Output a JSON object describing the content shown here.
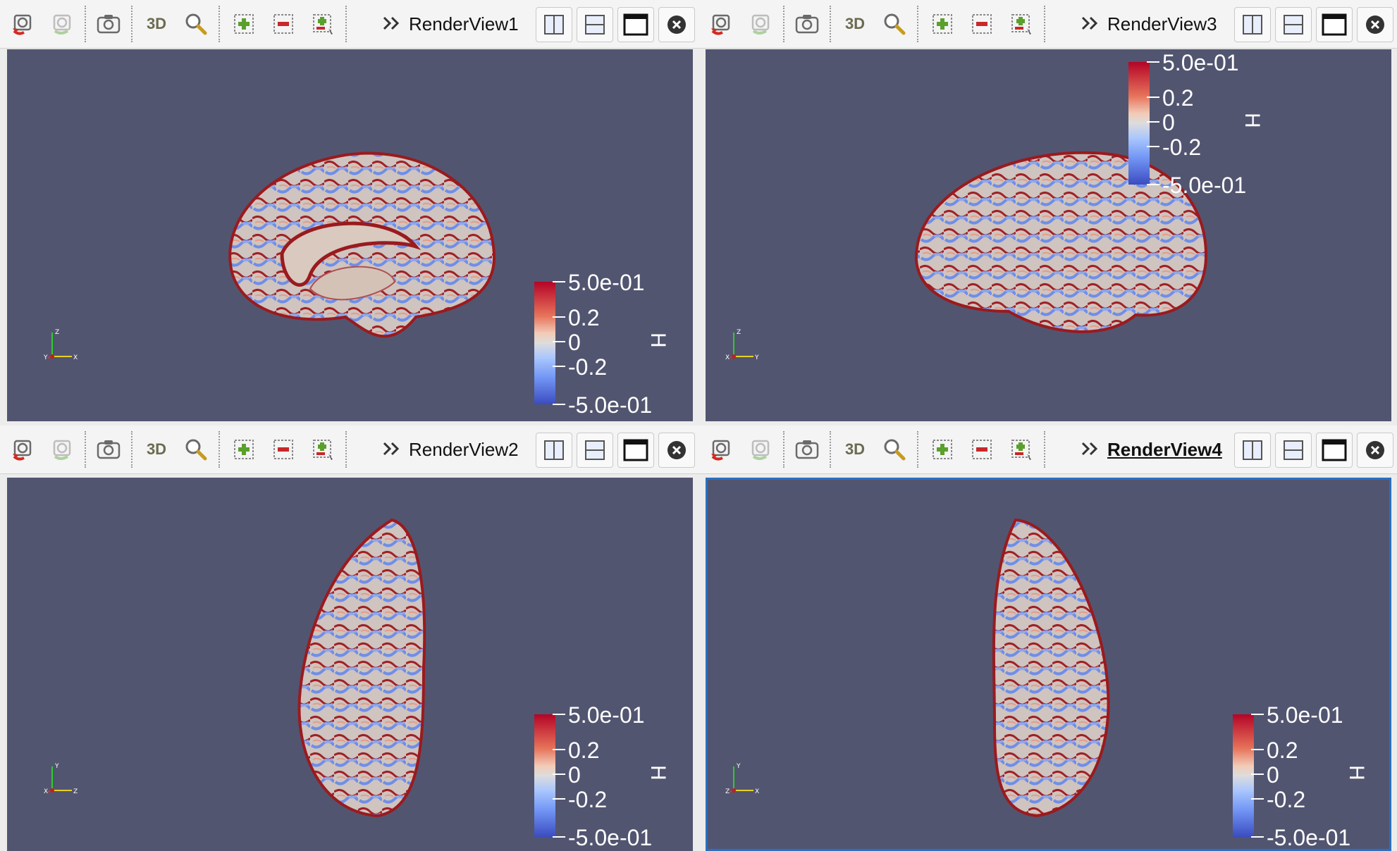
{
  "views": [
    {
      "id": "p1",
      "title": "RenderView1",
      "active": false,
      "colorbar": {
        "title": "H",
        "labels": [
          "5.0e-01",
          "0.2",
          "0",
          "-0.2",
          "-5.0e-01"
        ]
      },
      "axes_labels": [
        "Z",
        "X",
        "Y"
      ]
    },
    {
      "id": "p3",
      "title": "RenderView3",
      "active": false,
      "colorbar": {
        "title": "H",
        "labels": [
          "5.0e-01",
          "0.2",
          "0",
          "-0.2",
          "-5.0e-01"
        ]
      },
      "axes_labels": [
        "Z",
        "Y",
        "X"
      ]
    },
    {
      "id": "p2",
      "title": "RenderView2",
      "active": false,
      "colorbar": {
        "title": "H",
        "labels": [
          "5.0e-01",
          "0.2",
          "0",
          "-0.2",
          "-5.0e-01"
        ]
      },
      "axes_labels": [
        "Y",
        "Z",
        "X"
      ]
    },
    {
      "id": "p4",
      "title": "RenderView4",
      "active": true,
      "colorbar": {
        "title": "H",
        "labels": [
          "5.0e-01",
          "0.2",
          "0",
          "-0.2",
          "-5.0e-01"
        ]
      },
      "axes_labels": [
        "Y",
        "X",
        "Z"
      ]
    }
  ],
  "toolbar": {
    "three_d_label": "3D",
    "icons": [
      "reset-camera-icon",
      "zoom-closest-icon",
      "screenshot-icon",
      "3d-toggle",
      "zoom-to-box-icon",
      "select-cells-add-icon",
      "select-cells-remove-icon",
      "select-points-add-icon",
      "more-chevron-icon",
      "split-horizontal-icon",
      "split-vertical-icon",
      "maximize-icon",
      "close-icon"
    ]
  },
  "colors": {
    "background": "#525570",
    "colormap_high": "#b40426",
    "colormap_low": "#3b4cc0",
    "active_border": "#2a6fc2"
  }
}
